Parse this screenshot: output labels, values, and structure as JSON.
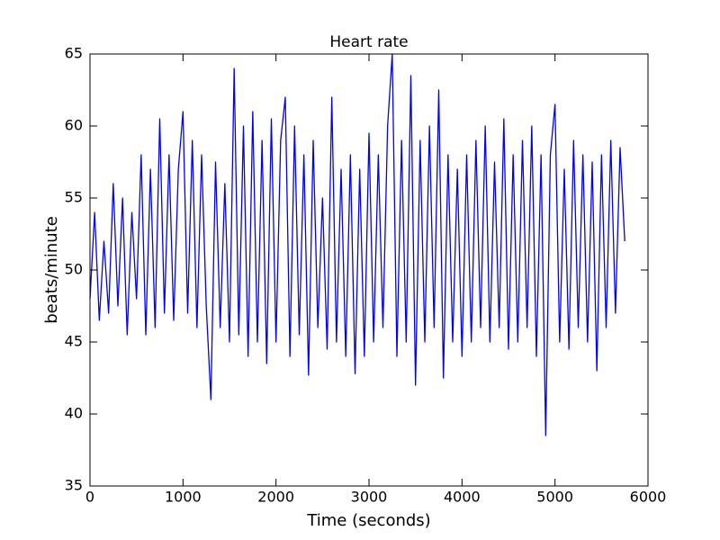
{
  "chart_data": {
    "type": "line",
    "title": "Heart rate",
    "xlabel": "Time (seconds)",
    "ylabel": "beats/minute",
    "x": [
      0,
      50,
      100,
      150,
      200,
      250,
      300,
      350,
      400,
      450,
      500,
      550,
      600,
      650,
      700,
      750,
      800,
      850,
      900,
      950,
      1000,
      1050,
      1100,
      1150,
      1200,
      1250,
      1300,
      1350,
      1400,
      1450,
      1500,
      1550,
      1600,
      1650,
      1700,
      1750,
      1800,
      1850,
      1900,
      1950,
      2000,
      2050,
      2100,
      2150,
      2200,
      2250,
      2300,
      2350,
      2400,
      2450,
      2500,
      2550,
      2600,
      2650,
      2700,
      2750,
      2800,
      2850,
      2900,
      2950,
      3000,
      3050,
      3100,
      3150,
      3200,
      3250,
      3300,
      3350,
      3400,
      3450,
      3500,
      3550,
      3600,
      3650,
      3700,
      3750,
      3800,
      3850,
      3900,
      3950,
      4000,
      4050,
      4100,
      4150,
      4200,
      4250,
      4300,
      4350,
      4400,
      4450,
      4500,
      4550,
      4600,
      4650,
      4700,
      4750,
      4800,
      4850,
      4900,
      4950,
      5000,
      5050,
      5100,
      5150,
      5200,
      5250,
      5300,
      5350,
      5400,
      5450,
      5500,
      5550,
      5600,
      5650,
      5700,
      5750
    ],
    "values": [
      48,
      54,
      46.5,
      52,
      47,
      56,
      47.5,
      55,
      45.5,
      54,
      48,
      58,
      45.5,
      57,
      46,
      60.5,
      47,
      58,
      46.5,
      57,
      61,
      47,
      59,
      46,
      58,
      47.5,
      41,
      57.5,
      46,
      56,
      45,
      64,
      45.5,
      60,
      44,
      61,
      45,
      59,
      43.5,
      60.5,
      45,
      59,
      62,
      44,
      60,
      45.5,
      58,
      42.7,
      59,
      46,
      55,
      44.5,
      62,
      45,
      57,
      44,
      58,
      42.8,
      57,
      44,
      59.5,
      45,
      58,
      46,
      60,
      65,
      44,
      59,
      45,
      63.5,
      42,
      59,
      45,
      60,
      46,
      62.5,
      42.5,
      58,
      45,
      57,
      44,
      58,
      45,
      59,
      46,
      60,
      45,
      57.5,
      46,
      60.5,
      44.5,
      58,
      45,
      59,
      46,
      60,
      44,
      58,
      38.5,
      58,
      61.5,
      45,
      57,
      44.5,
      59,
      46,
      58,
      45,
      57.5,
      43,
      58,
      46,
      59,
      47,
      58.5,
      52
    ],
    "color": "#0000ff",
    "xlim": [
      0,
      6000
    ],
    "xticks": [
      0,
      1000,
      2000,
      3000,
      4000,
      5000,
      6000
    ],
    "ylim": [
      35,
      65
    ],
    "yticks": [
      35,
      40,
      45,
      50,
      55,
      60,
      65
    ],
    "grid": false
  }
}
